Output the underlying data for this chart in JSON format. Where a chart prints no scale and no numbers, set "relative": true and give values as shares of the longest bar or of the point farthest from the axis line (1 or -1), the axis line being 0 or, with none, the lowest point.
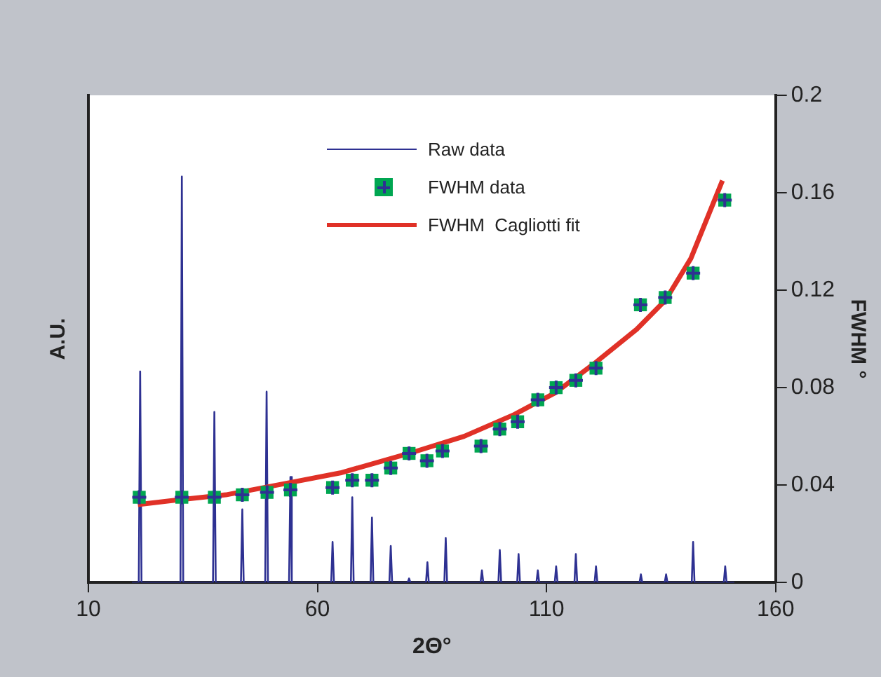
{
  "chart_data": {
    "type": "line",
    "relative": true,
    "xlabel": "2Θ°",
    "ylabel": "A.U.",
    "y2label": "FWHM °",
    "xlim": [
      10,
      160
    ],
    "xticks": [
      10,
      60,
      110,
      160
    ],
    "y2lim": [
      0,
      0.2
    ],
    "y2ticks": [
      0,
      0.04,
      0.08,
      0.12,
      0.16,
      0.2
    ],
    "grid": false,
    "legend": "top",
    "series": [
      {
        "name": "Raw data",
        "type": "line",
        "axis": "y",
        "color": "#2e3192",
        "x": [
          19.5,
          21.0,
          21.3,
          21.6,
          30.1,
          30.4,
          30.7,
          37.2,
          37.5,
          37.8,
          43.3,
          43.6,
          43.9,
          48.6,
          48.9,
          49.2,
          53.8,
          54.1,
          54.4,
          63.0,
          63.3,
          63.6,
          67.3,
          67.6,
          67.9,
          71.6,
          71.9,
          72.2,
          75.7,
          76.0,
          76.3,
          79.7,
          80.0,
          80.3,
          83.7,
          84.0,
          84.3,
          87.7,
          88.0,
          88.3,
          95.6,
          95.9,
          96.2,
          99.5,
          99.8,
          100.1,
          103.6,
          103.9,
          104.2,
          107.8,
          108.1,
          108.4,
          111.8,
          112.1,
          112.4,
          116.1,
          116.4,
          116.7,
          120.5,
          120.8,
          121.1,
          130.3,
          130.6,
          130.9,
          135.8,
          136.1,
          136.4,
          141.7,
          142.0,
          142.3,
          148.7,
          149.0,
          149.3,
          151.0
        ],
        "values": [
          0,
          0,
          0.52,
          0,
          0,
          1,
          0,
          0,
          0.42,
          0,
          0,
          0.18,
          0,
          0,
          0.47,
          0,
          0,
          0.26,
          0,
          0,
          0.1,
          0,
          0,
          0.21,
          0,
          0,
          0.16,
          0,
          0,
          0.09,
          0,
          0,
          0.01,
          0,
          0,
          0.05,
          0,
          0,
          0.11,
          0,
          0,
          0.03,
          0,
          0,
          0.08,
          0,
          0,
          0.07,
          0,
          0,
          0.03,
          0,
          0,
          0.04,
          0,
          0,
          0.07,
          0,
          0,
          0.04,
          0,
          0,
          0.02,
          0,
          0,
          0.02,
          0,
          0,
          0.1,
          0,
          0,
          0.04,
          0,
          0
        ],
        "line_style": "solid",
        "marker": "none"
      },
      {
        "name": "FWHM data",
        "type": "scatter",
        "axis": "y2",
        "color": "#00a651",
        "marker": "square",
        "x": [
          21.1,
          30.4,
          37.5,
          43.6,
          49.0,
          54.1,
          63.3,
          67.6,
          71.9,
          76.0,
          80.0,
          83.9,
          87.3,
          95.7,
          99.8,
          103.7,
          108.1,
          112.1,
          116.4,
          120.8,
          130.5,
          135.9,
          142.0,
          148.9
        ],
        "values": [
          0.035,
          0.035,
          0.035,
          0.036,
          0.037,
          0.038,
          0.039,
          0.042,
          0.042,
          0.047,
          0.053,
          0.05,
          0.054,
          0.056,
          0.063,
          0.066,
          0.075,
          0.08,
          0.083,
          0.088,
          0.114,
          0.117,
          0.127,
          0.157
        ]
      },
      {
        "name": "FWHM  Cagliotti fit",
        "type": "line",
        "axis": "y2",
        "color": "#e03127",
        "line_style": "solid",
        "marker": "none",
        "x": [
          20.8,
          30,
          40,
          54,
          65,
          80,
          92,
          103,
          112,
          120.5,
          129.7,
          136,
          141.5,
          148.4
        ],
        "values": [
          0.032,
          0.034,
          0.036,
          0.041,
          0.045,
          0.053,
          0.06,
          0.069,
          0.078,
          0.09,
          0.104,
          0.116,
          0.133,
          0.165
        ]
      }
    ]
  }
}
